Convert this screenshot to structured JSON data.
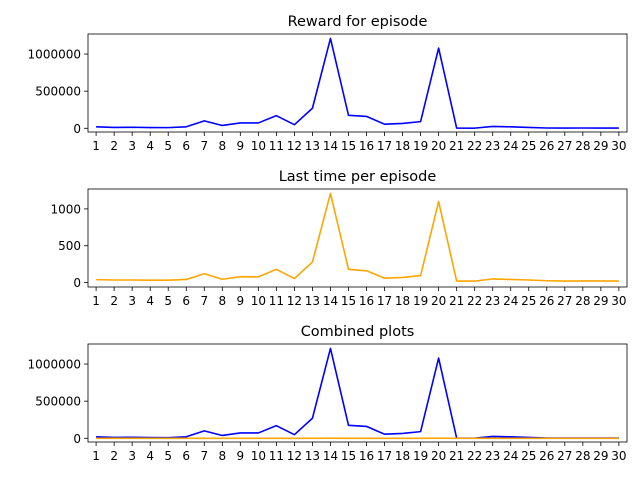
{
  "chart_data": [
    {
      "type": "line",
      "title": "Reward for episode",
      "categories": [
        "1",
        "2",
        "3",
        "4",
        "5",
        "6",
        "7",
        "8",
        "9",
        "10",
        "11",
        "12",
        "13",
        "14",
        "15",
        "16",
        "17",
        "18",
        "19",
        "20",
        "21",
        "22",
        "23",
        "24",
        "25",
        "26",
        "27",
        "28",
        "29",
        "30"
      ],
      "series": [
        {
          "color": "#0000ff",
          "values": [
            20000,
            12000,
            14000,
            10000,
            9000,
            20000,
            100000,
            38000,
            72000,
            72000,
            170000,
            48000,
            270000,
            1210000,
            175000,
            160000,
            55000,
            65000,
            90000,
            1080000,
            3000,
            2000,
            25000,
            20000,
            12000,
            4000,
            3000,
            4000,
            3000,
            3000
          ]
        }
      ],
      "yticks": [
        "1000000",
        "500000",
        "0"
      ],
      "ylim": [
        -50000,
        1270000
      ]
    },
    {
      "type": "line",
      "title": "Last time per episode",
      "categories": [
        "1",
        "2",
        "3",
        "4",
        "5",
        "6",
        "7",
        "8",
        "9",
        "10",
        "11",
        "12",
        "13",
        "14",
        "15",
        "16",
        "17",
        "18",
        "19",
        "20",
        "21",
        "22",
        "23",
        "24",
        "25",
        "26",
        "27",
        "28",
        "29",
        "30"
      ],
      "series": [
        {
          "color": "#ffa500",
          "values": [
            40,
            35,
            35,
            32,
            32,
            42,
            120,
            45,
            80,
            78,
            180,
            55,
            280,
            1210,
            180,
            160,
            60,
            70,
            95,
            1100,
            20,
            20,
            50,
            42,
            35,
            25,
            20,
            22,
            22,
            20
          ]
        }
      ],
      "yticks": [
        "1000",
        "500",
        "0"
      ],
      "ylim": [
        -60,
        1270
      ]
    },
    {
      "type": "line",
      "title": "Combined plots",
      "categories": [
        "1",
        "2",
        "3",
        "4",
        "5",
        "6",
        "7",
        "8",
        "9",
        "10",
        "11",
        "12",
        "13",
        "14",
        "15",
        "16",
        "17",
        "18",
        "19",
        "20",
        "21",
        "22",
        "23",
        "24",
        "25",
        "26",
        "27",
        "28",
        "29",
        "30"
      ],
      "series": [
        {
          "color": "#0000ff",
          "values": [
            20000,
            12000,
            14000,
            10000,
            9000,
            20000,
            100000,
            38000,
            72000,
            72000,
            170000,
            48000,
            270000,
            1210000,
            175000,
            160000,
            55000,
            65000,
            90000,
            1080000,
            3000,
            2000,
            25000,
            20000,
            12000,
            4000,
            3000,
            4000,
            3000,
            3000
          ]
        },
        {
          "color": "#ffa500",
          "values": [
            40,
            35,
            35,
            32,
            32,
            42,
            120,
            45,
            80,
            78,
            180,
            55,
            280,
            1210,
            180,
            160,
            60,
            70,
            95,
            1100,
            20,
            20,
            50,
            42,
            35,
            25,
            20,
            22,
            22,
            20
          ]
        }
      ],
      "yticks": [
        "1000000",
        "500000",
        "0"
      ],
      "ylim": [
        -50000,
        1270000
      ]
    }
  ]
}
